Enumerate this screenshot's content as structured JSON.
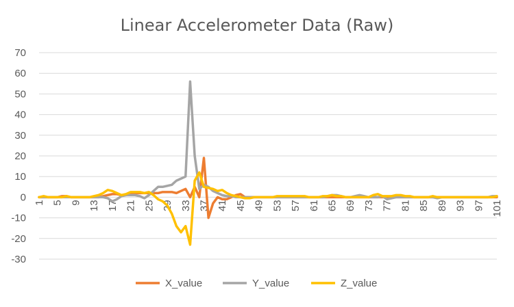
{
  "chart_data": {
    "type": "line",
    "title": "Linear Accelerometer Data (Raw)",
    "xlabel": "",
    "ylabel": "",
    "ylim": [
      -30,
      70
    ],
    "y_ticks": [
      -30,
      -20,
      -10,
      0,
      10,
      20,
      30,
      40,
      50,
      60,
      70
    ],
    "x_range": [
      1,
      101
    ],
    "x_ticks": [
      1,
      5,
      9,
      13,
      17,
      21,
      25,
      29,
      33,
      37,
      41,
      45,
      49,
      53,
      57,
      61,
      65,
      69,
      73,
      77,
      81,
      85,
      89,
      93,
      97,
      101
    ],
    "grid": "horizontal",
    "legend_position": "bottom",
    "series": [
      {
        "name": "X_value",
        "color": "#ED7D31",
        "values": [
          0,
          0,
          0,
          0,
          0,
          0.5,
          0.5,
          0,
          0,
          0,
          0,
          0,
          0,
          0,
          0.5,
          1,
          1.5,
          1.5,
          1,
          1,
          1.5,
          2,
          2,
          2,
          2,
          2,
          2,
          2.5,
          2.5,
          2.5,
          2,
          3,
          4,
          0,
          5,
          0,
          19,
          -10,
          -3,
          0,
          -1,
          -1,
          0,
          1,
          1.5,
          0,
          0,
          0,
          0,
          0,
          0,
          0,
          0,
          0,
          0,
          0,
          0,
          0,
          0,
          0,
          0,
          0,
          0,
          0,
          0,
          0,
          0,
          0,
          0,
          0,
          0,
          0,
          0,
          0,
          0,
          0,
          0,
          0,
          0,
          0,
          0,
          0,
          0,
          0,
          0,
          0,
          0,
          0,
          0,
          0,
          0,
          0,
          0,
          0,
          0,
          0,
          0,
          0,
          0,
          0,
          0
        ]
      },
      {
        "name": "Y_value",
        "color": "#A5A5A5",
        "values": [
          0,
          0,
          0,
          0,
          0,
          0,
          0,
          0,
          0,
          0,
          0,
          0,
          0,
          0,
          0,
          -0.5,
          -2,
          -1,
          0.5,
          1,
          1,
          1,
          0.5,
          -0.5,
          1,
          3,
          5,
          5,
          5.5,
          6,
          8,
          9,
          10,
          56,
          20,
          4,
          6,
          5,
          3,
          2,
          1,
          0.5,
          0.5,
          0,
          0,
          0,
          0,
          0,
          0,
          0,
          0,
          0,
          0,
          0,
          0,
          0,
          0,
          0,
          0,
          0,
          0,
          0,
          0,
          0.5,
          1,
          1,
          0.5,
          0,
          0,
          0.5,
          1,
          0.5,
          0,
          0,
          0,
          0.5,
          -1,
          -0.5,
          0,
          0,
          0,
          0,
          0,
          0,
          0,
          0,
          0,
          -0.5,
          0,
          0,
          0,
          0,
          0,
          0,
          0,
          0,
          0,
          0,
          0,
          0.5,
          0.5
        ]
      },
      {
        "name": "Z_value",
        "color": "#FFC000",
        "values": [
          0,
          0.5,
          0,
          0,
          0,
          0,
          0.5,
          0,
          0,
          0,
          0,
          0,
          0.5,
          1,
          2,
          3.5,
          3,
          2,
          1,
          1.5,
          2.5,
          2.5,
          2.5,
          2,
          2.5,
          1,
          -1,
          -2,
          -4,
          -8,
          -14,
          -17,
          -14,
          -23,
          8,
          12,
          5,
          4.5,
          4,
          3,
          3.5,
          2,
          1,
          0.5,
          0,
          -0.5,
          -0.5,
          0,
          0,
          0,
          0,
          0,
          0.5,
          0.5,
          0.5,
          0.5,
          0.5,
          0.5,
          0.5,
          0,
          0,
          0,
          0.5,
          0.5,
          1,
          0.5,
          0.5,
          0,
          0,
          0,
          0,
          0,
          0,
          1,
          1.5,
          0.5,
          0.5,
          0.5,
          1,
          1,
          0.5,
          0.5,
          0,
          0,
          0,
          0,
          0.5,
          0,
          0,
          0,
          0,
          0,
          0,
          0,
          0,
          0,
          0,
          0,
          0,
          0,
          0.5
        ]
      }
    ]
  }
}
